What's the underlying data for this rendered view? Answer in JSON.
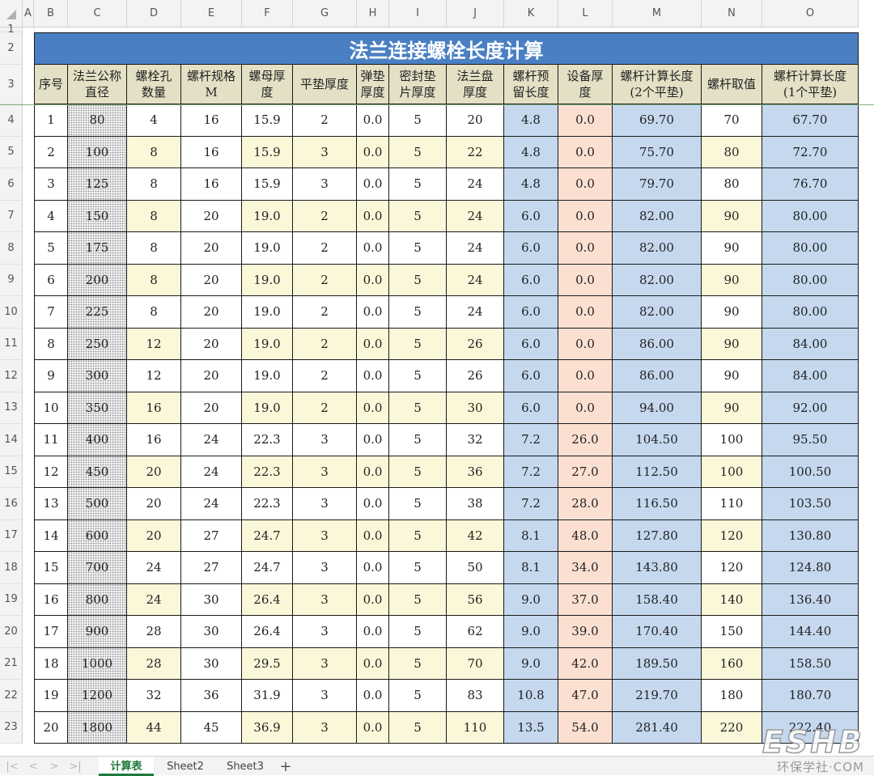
{
  "columns": [
    "A",
    "B",
    "C",
    "D",
    "E",
    "F",
    "G",
    "H",
    "I",
    "J",
    "K",
    "L",
    "M",
    "N",
    "O"
  ],
  "row_numbers": [
    "1",
    "2",
    "3",
    "4",
    "5",
    "6",
    "7",
    "8",
    "9",
    "10",
    "11",
    "12",
    "13",
    "14",
    "15",
    "16",
    "17",
    "18",
    "19",
    "20",
    "21",
    "22",
    "23"
  ],
  "title": "法兰连接螺栓长度计算",
  "headers": [
    [
      "序号"
    ],
    [
      "法兰公称",
      "直径"
    ],
    [
      "螺栓孔",
      "数量"
    ],
    [
      "螺杆规格",
      "M"
    ],
    [
      "螺母厚",
      "度"
    ],
    [
      "平垫厚度"
    ],
    [
      "弹垫",
      "厚度"
    ],
    [
      "密封垫",
      "片厚度"
    ],
    [
      "法兰盘",
      "厚度"
    ],
    [
      "螺杆预",
      "留长度"
    ],
    [
      "设备厚",
      "度"
    ],
    [
      "螺杆计算长度",
      "(2个平垫)"
    ],
    [
      "螺杆取值"
    ],
    [
      "螺杆计算长度",
      "(1个平垫)"
    ]
  ],
  "rows": [
    [
      "1",
      "80",
      "4",
      "16",
      "15.9",
      "2",
      "0.0",
      "5",
      "20",
      "4.8",
      "0.0",
      "69.70",
      "70",
      "67.70"
    ],
    [
      "2",
      "100",
      "8",
      "16",
      "15.9",
      "3",
      "0.0",
      "5",
      "22",
      "4.8",
      "0.0",
      "75.70",
      "80",
      "72.70"
    ],
    [
      "3",
      "125",
      "8",
      "16",
      "15.9",
      "3",
      "0.0",
      "5",
      "24",
      "4.8",
      "0.0",
      "79.70",
      "80",
      "76.70"
    ],
    [
      "4",
      "150",
      "8",
      "20",
      "19.0",
      "2",
      "0.0",
      "5",
      "24",
      "6.0",
      "0.0",
      "82.00",
      "90",
      "80.00"
    ],
    [
      "5",
      "175",
      "8",
      "20",
      "19.0",
      "2",
      "0.0",
      "5",
      "24",
      "6.0",
      "0.0",
      "82.00",
      "90",
      "80.00"
    ],
    [
      "6",
      "200",
      "8",
      "20",
      "19.0",
      "2",
      "0.0",
      "5",
      "24",
      "6.0",
      "0.0",
      "82.00",
      "90",
      "80.00"
    ],
    [
      "7",
      "225",
      "8",
      "20",
      "19.0",
      "2",
      "0.0",
      "5",
      "24",
      "6.0",
      "0.0",
      "82.00",
      "90",
      "80.00"
    ],
    [
      "8",
      "250",
      "12",
      "20",
      "19.0",
      "2",
      "0.0",
      "5",
      "26",
      "6.0",
      "0.0",
      "86.00",
      "90",
      "84.00"
    ],
    [
      "9",
      "300",
      "12",
      "20",
      "19.0",
      "2",
      "0.0",
      "5",
      "26",
      "6.0",
      "0.0",
      "86.00",
      "90",
      "84.00"
    ],
    [
      "10",
      "350",
      "16",
      "20",
      "19.0",
      "2",
      "0.0",
      "5",
      "30",
      "6.0",
      "0.0",
      "94.00",
      "90",
      "92.00"
    ],
    [
      "11",
      "400",
      "16",
      "24",
      "22.3",
      "3",
      "0.0",
      "5",
      "32",
      "7.2",
      "26.0",
      "104.50",
      "100",
      "95.50"
    ],
    [
      "12",
      "450",
      "20",
      "24",
      "22.3",
      "3",
      "0.0",
      "5",
      "36",
      "7.2",
      "27.0",
      "112.50",
      "100",
      "100.50"
    ],
    [
      "13",
      "500",
      "20",
      "24",
      "22.3",
      "3",
      "0.0",
      "5",
      "38",
      "7.2",
      "28.0",
      "116.50",
      "110",
      "103.50"
    ],
    [
      "14",
      "600",
      "20",
      "27",
      "24.7",
      "3",
      "0.0",
      "5",
      "42",
      "8.1",
      "48.0",
      "127.80",
      "120",
      "130.80"
    ],
    [
      "15",
      "700",
      "24",
      "27",
      "24.7",
      "3",
      "0.0",
      "5",
      "50",
      "8.1",
      "34.0",
      "143.80",
      "120",
      "124.80"
    ],
    [
      "16",
      "800",
      "24",
      "30",
      "26.4",
      "3",
      "0.0",
      "5",
      "56",
      "9.0",
      "37.0",
      "158.40",
      "140",
      "136.40"
    ],
    [
      "17",
      "900",
      "28",
      "30",
      "26.4",
      "3",
      "0.0",
      "5",
      "62",
      "9.0",
      "39.0",
      "170.40",
      "150",
      "144.40"
    ],
    [
      "18",
      "1000",
      "28",
      "30",
      "29.5",
      "3",
      "0.0",
      "5",
      "70",
      "9.0",
      "42.0",
      "189.50",
      "160",
      "158.50"
    ],
    [
      "19",
      "1200",
      "32",
      "36",
      "31.9",
      "3",
      "0.0",
      "5",
      "83",
      "10.8",
      "47.0",
      "219.70",
      "180",
      "180.70"
    ],
    [
      "20",
      "1800",
      "44",
      "45",
      "36.9",
      "3",
      "0.0",
      "5",
      "110",
      "13.5",
      "54.0",
      "281.40",
      "220",
      "222.40"
    ]
  ],
  "sheet_tabs": [
    "计算表",
    "Sheet2",
    "Sheet3"
  ],
  "active_tab": "计算表",
  "add_tab_glyph": "+",
  "nav_glyphs": [
    "|<",
    "<",
    ">",
    ">|"
  ],
  "watermark": {
    "logo": "ESHB",
    "text": "环保学社·COM"
  },
  "colors": {
    "title_bg": "#4a80c3",
    "header_bg": "#e4e0c5",
    "yellow": "#fbf8da",
    "blue": "#c5d8ee",
    "orange": "#fbe0d2",
    "white": "#ffffff",
    "active_tab": "#1e7a3c"
  }
}
